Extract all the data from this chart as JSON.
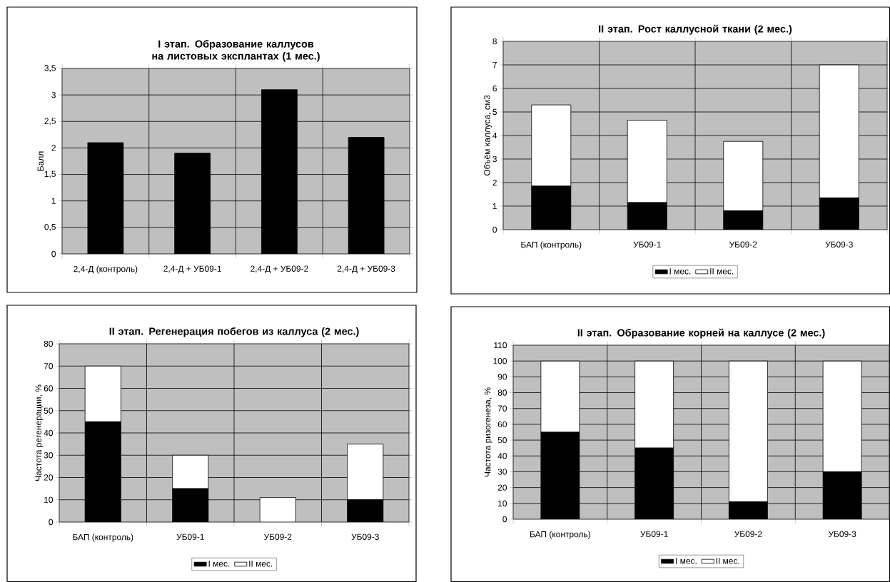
{
  "chart_data": [
    {
      "type": "bar",
      "title": "I этап. Образование каллусов на листовых эксплантах (1 мес.)",
      "ylabel": "Балл",
      "categories": [
        "2,4-Д (контроль)",
        "2,4-Д + УБ09-1",
        "2,4-Д + УБ09-2",
        "2,4-Д + УБ09-3"
      ],
      "values": [
        2.1,
        1.9,
        3.1,
        2.2
      ],
      "color": "#000000",
      "ylim": [
        0,
        3.5
      ],
      "yticks": [
        0,
        {
          "value": 0.5,
          "label": "0,5"
        },
        1,
        {
          "value": 1.5,
          "label": "1,5"
        },
        2,
        {
          "value": 2.5,
          "label": "2,5"
        },
        3,
        {
          "value": 3.5,
          "label": "3,5"
        }
      ],
      "grid": true
    },
    {
      "type": "bar",
      "stacked": true,
      "title": "II этап. Рост каллусной ткани  (2 мес.)",
      "ylabel": "Объём каллуса, см3",
      "categories": [
        "БАП (контроль)",
        "УБ09-1",
        "УБ09-2",
        "УБ09-3"
      ],
      "series": [
        {
          "name": "I мес.",
          "color": "#000000",
          "values": [
            1.85,
            1.15,
            0.8,
            1.35
          ]
        },
        {
          "name": "II мес.",
          "color": "#ffffff",
          "values": [
            3.45,
            3.5,
            2.95,
            5.65
          ]
        }
      ],
      "ylim": [
        0,
        8
      ],
      "yticks": [
        0,
        1,
        2,
        3,
        4,
        5,
        6,
        7,
        8
      ],
      "grid": true,
      "legend": "bottom"
    },
    {
      "type": "bar",
      "stacked": true,
      "title": "II этап. Регенерация побегов из каллуса (2 мес.)",
      "ylabel": "Частота регенерации,  %",
      "categories": [
        "БАП (контроль)",
        "УБ09-1",
        "УБ09-2",
        "УБ09-3"
      ],
      "series": [
        {
          "name": "I мес.",
          "color": "#000000",
          "values": [
            45,
            15,
            0,
            10
          ]
        },
        {
          "name": "II мес.",
          "color": "#ffffff",
          "values": [
            25,
            15,
            11,
            25
          ]
        }
      ],
      "ylim": [
        0,
        80
      ],
      "yticks": [
        0,
        10,
        20,
        30,
        40,
        50,
        60,
        70,
        80
      ],
      "grid": true,
      "legend": "bottom"
    },
    {
      "type": "bar",
      "stacked": true,
      "title": "II этап. Образование корней на каллусе (2 мес.)",
      "ylabel": "Частота ризогенеза,  %",
      "categories": [
        "БАП (контроль)",
        "УБ09-1",
        "УБ09-2",
        "УБ09-3"
      ],
      "series": [
        {
          "name": "I мес.",
          "color": "#000000",
          "values": [
            55,
            45,
            11,
            30
          ]
        },
        {
          "name": "II мес.",
          "color": "#ffffff",
          "values": [
            45,
            55,
            89,
            70
          ]
        }
      ],
      "ylim": [
        0,
        110
      ],
      "yticks": [
        0,
        10,
        20,
        30,
        40,
        50,
        60,
        70,
        80,
        90,
        100,
        110
      ],
      "grid": true,
      "legend": "bottom"
    }
  ]
}
